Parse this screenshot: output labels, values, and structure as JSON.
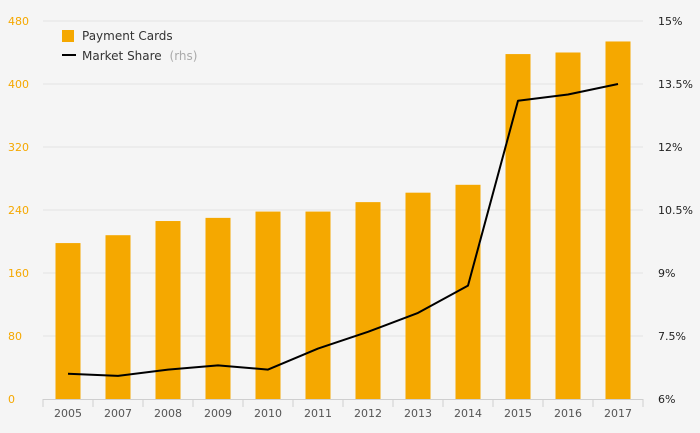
{
  "chart_data": {
    "type": "bar",
    "categories": [
      "2005",
      "2007",
      "2008",
      "2009",
      "2010",
      "2011",
      "2012",
      "2013",
      "2014",
      "2015",
      "2016",
      "2017"
    ],
    "series": [
      {
        "name": "Payment Cards",
        "axis": "left",
        "type": "bar",
        "color": "#f5a800",
        "values": [
          198,
          208,
          226,
          230,
          238,
          238,
          250,
          262,
          272,
          438,
          440,
          454
        ]
      },
      {
        "name": "Market Share",
        "axis": "right",
        "type": "line",
        "color": "#000000",
        "values": [
          6.6,
          6.55,
          6.7,
          6.8,
          6.7,
          7.2,
          7.6,
          8.05,
          8.7,
          13.1,
          13.25,
          13.5
        ]
      }
    ],
    "y_left": {
      "ylim": [
        0,
        480
      ],
      "ticks": [
        "0",
        "80",
        "160",
        "240",
        "320",
        "400",
        "480"
      ],
      "tick_values": [
        0,
        80,
        160,
        240,
        320,
        400,
        480
      ]
    },
    "y_right": {
      "ylim": [
        6,
        15
      ],
      "ticks": [
        "6%",
        "7.5%",
        "9%",
        "10.5%",
        "12%",
        "13.5%",
        "15%"
      ],
      "tick_values": [
        6,
        7.5,
        9,
        10.5,
        12,
        13.5,
        15
      ]
    },
    "legend": {
      "position": "top-left",
      "bar_label": "Payment Cards",
      "line_label": "Market Share",
      "line_note": "(rhs)"
    },
    "colors": {
      "grid": "#e2e2e2",
      "axis": "#cfcfcf",
      "left_ticks": "#f5a800",
      "right_ticks": "#222222"
    }
  }
}
